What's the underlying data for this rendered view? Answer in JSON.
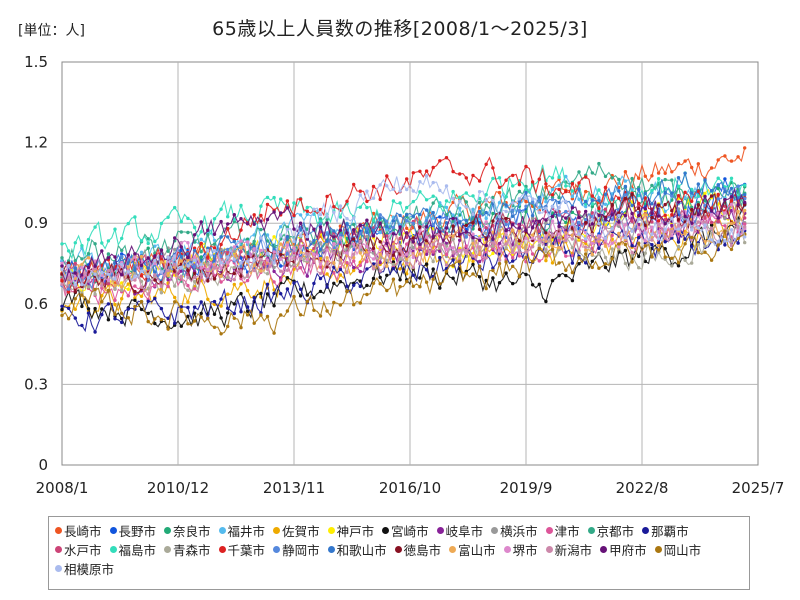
{
  "header": {
    "unit_label": "[単位：人]",
    "title": "65歳以上人員数の推移[2008/1～2025/3]"
  },
  "chart_data": {
    "type": "line",
    "title": "65歳以上人員数の推移[2008/1～2025/3]",
    "ylabel": "[単位：人]",
    "xlabel": "",
    "x_range": [
      "2008/1",
      "2025/7"
    ],
    "data_range": [
      "2008/1",
      "2025/3"
    ],
    "ylim": [
      0,
      1.5
    ],
    "y_ticks": [
      0,
      0.3,
      0.6,
      0.9,
      1.2,
      1.5
    ],
    "y_tick_labels": [
      "0",
      "0.3",
      "0.6",
      "0.9",
      "1.2",
      "1.5"
    ],
    "x_ticks": [
      "2008/1",
      "2010/12",
      "2013/11",
      "2016/10",
      "2019/9",
      "2022/8",
      "2025/7"
    ],
    "grid": true,
    "legend_position": "bottom",
    "series": [
      {
        "name": "長崎市",
        "color": "#ee5522",
        "keyframes": [
          0.7,
          0.72,
          0.78,
          0.8,
          0.85,
          0.9,
          0.95,
          1.0,
          1.05,
          1.1,
          1.15
        ]
      },
      {
        "name": "長野市",
        "color": "#1155dd",
        "keyframes": [
          0.72,
          0.72,
          0.75,
          0.78,
          0.82,
          0.85,
          0.88,
          0.9,
          0.92,
          0.95,
          1.05
        ]
      },
      {
        "name": "奈良市",
        "color": "#22aa77",
        "keyframes": [
          0.7,
          0.72,
          0.75,
          0.8,
          0.85,
          0.88,
          0.9,
          0.92,
          0.95,
          0.98,
          1.0
        ]
      },
      {
        "name": "福井市",
        "color": "#55bbee",
        "keyframes": [
          0.75,
          0.75,
          0.8,
          0.85,
          0.9,
          0.92,
          0.95,
          1.0,
          1.05,
          1.0,
          0.95
        ]
      },
      {
        "name": "佐賀市",
        "color": "#eeaa00",
        "keyframes": [
          0.6,
          0.62,
          0.65,
          0.68,
          0.72,
          0.75,
          0.78,
          0.8,
          0.82,
          0.85,
          0.88
        ]
      },
      {
        "name": "神戸市",
        "color": "#ffee00",
        "keyframes": [
          0.7,
          0.72,
          0.75,
          0.8,
          0.82,
          0.85,
          0.8,
          0.85,
          0.9,
          0.95,
          1.0
        ]
      },
      {
        "name": "宮崎市",
        "color": "#111111",
        "keyframes": [
          0.62,
          0.58,
          0.55,
          0.6,
          0.68,
          0.72,
          0.7,
          0.65,
          0.75,
          0.8,
          0.9
        ]
      },
      {
        "name": "岐阜市",
        "color": "#882299",
        "keyframes": [
          0.68,
          0.7,
          0.72,
          0.75,
          0.78,
          0.8,
          0.82,
          0.85,
          0.88,
          0.9,
          0.92
        ]
      },
      {
        "name": "横浜市",
        "color": "#999999",
        "keyframes": [
          0.72,
          0.74,
          0.76,
          0.78,
          0.8,
          0.82,
          0.84,
          0.86,
          0.88,
          0.9,
          0.92
        ]
      },
      {
        "name": "津市",
        "color": "#dd5599",
        "keyframes": [
          0.65,
          0.66,
          0.7,
          0.72,
          0.75,
          0.78,
          0.8,
          0.82,
          0.84,
          0.86,
          0.88
        ]
      },
      {
        "name": "京都市",
        "color": "#33aa88",
        "keyframes": [
          0.8,
          0.8,
          0.82,
          0.85,
          0.88,
          0.9,
          0.95,
          1.0,
          1.1,
          1.0,
          0.98
        ]
      },
      {
        "name": "那覇市",
        "color": "#1a1a99",
        "keyframes": [
          0.55,
          0.55,
          0.58,
          0.62,
          0.68,
          0.72,
          0.75,
          0.78,
          0.8,
          0.82,
          0.85
        ]
      },
      {
        "name": "水戸市",
        "color": "#cc4477",
        "keyframes": [
          0.7,
          0.72,
          0.74,
          0.78,
          0.82,
          0.85,
          0.88,
          0.9,
          0.92,
          0.94,
          0.96
        ]
      },
      {
        "name": "福島市",
        "color": "#33ddbb",
        "keyframes": [
          0.8,
          0.85,
          0.9,
          0.95,
          0.92,
          0.95,
          1.0,
          1.1,
          1.0,
          1.05,
          1.0
        ]
      },
      {
        "name": "青森市",
        "color": "#aaaa99",
        "keyframes": [
          0.65,
          0.68,
          0.7,
          0.75,
          0.78,
          0.8,
          0.82,
          0.84,
          0.8,
          0.78,
          0.85
        ]
      },
      {
        "name": "千葉市",
        "color": "#dd2222",
        "keyframes": [
          0.7,
          0.72,
          0.78,
          0.95,
          1.0,
          1.05,
          1.1,
          1.05,
          1.0,
          0.95,
          0.98
        ]
      },
      {
        "name": "静岡市",
        "color": "#5588dd",
        "keyframes": [
          0.7,
          0.72,
          0.75,
          0.8,
          0.85,
          0.88,
          0.9,
          0.92,
          0.94,
          0.96,
          0.98
        ]
      },
      {
        "name": "和歌山市",
        "color": "#3377cc",
        "keyframes": [
          0.72,
          0.74,
          0.78,
          0.82,
          0.85,
          0.9,
          0.92,
          0.95,
          1.0,
          1.05,
          1.02
        ]
      },
      {
        "name": "徳島市",
        "color": "#881122",
        "keyframes": [
          0.68,
          0.7,
          0.72,
          0.76,
          0.8,
          0.85,
          0.88,
          0.9,
          0.92,
          0.94,
          0.96
        ]
      },
      {
        "name": "富山市",
        "color": "#eeaa55",
        "keyframes": [
          0.7,
          0.72,
          0.74,
          0.76,
          0.78,
          0.8,
          0.82,
          0.84,
          0.86,
          0.88,
          0.9
        ]
      },
      {
        "name": "堺市",
        "color": "#dd88cc",
        "keyframes": [
          0.72,
          0.74,
          0.76,
          0.78,
          0.8,
          0.82,
          0.84,
          0.86,
          0.88,
          0.9,
          0.92
        ]
      },
      {
        "name": "新潟市",
        "color": "#cc88aa",
        "keyframes": [
          0.68,
          0.7,
          0.72,
          0.74,
          0.76,
          0.78,
          0.8,
          0.82,
          0.84,
          0.86,
          0.88
        ]
      },
      {
        "name": "甲府市",
        "color": "#661177",
        "keyframes": [
          0.7,
          0.75,
          0.85,
          0.92,
          0.88,
          0.85,
          0.88,
          0.9,
          0.92,
          0.95,
          0.98
        ]
      },
      {
        "name": "岡山市",
        "color": "#aa7711",
        "keyframes": [
          0.6,
          0.58,
          0.55,
          0.55,
          0.6,
          0.65,
          0.7,
          0.75,
          0.78,
          0.8,
          0.85
        ]
      },
      {
        "name": "相模原市",
        "color": "#aabbee",
        "keyframes": [
          0.7,
          0.72,
          0.75,
          0.8,
          0.95,
          1.05,
          1.0,
          0.95,
          0.9,
          0.85,
          0.88
        ]
      }
    ]
  }
}
